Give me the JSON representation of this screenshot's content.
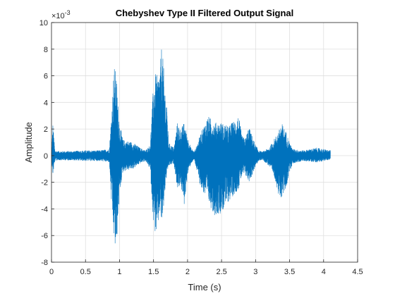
{
  "chart_data": {
    "type": "line",
    "title": "Chebyshev Type II Filtered Output Signal",
    "xlabel": "Time (s)",
    "ylabel": "Amplitude",
    "xlim": [
      0,
      4.5
    ],
    "ylim": [
      -8,
      10
    ],
    "y_exponent_label": "×10",
    "y_exponent_power": "-3",
    "x_ticks": [
      "0",
      "0.5",
      "1",
      "1.5",
      "2",
      "2.5",
      "3",
      "3.5",
      "4",
      "4.5"
    ],
    "y_ticks": [
      "-8",
      "-6",
      "-4",
      "-2",
      "0",
      "2",
      "4",
      "6",
      "8",
      "10"
    ],
    "grid": true,
    "line_color": "#0072BD",
    "series": [
      {
        "envelope_upper": [
          [
            0.0,
            0.3
          ],
          [
            0.02,
            2.5
          ],
          [
            0.05,
            0.4
          ],
          [
            0.1,
            0.35
          ],
          [
            0.3,
            0.35
          ],
          [
            0.5,
            0.4
          ],
          [
            0.7,
            0.4
          ],
          [
            0.85,
            0.5
          ],
          [
            0.88,
            3.0
          ],
          [
            0.92,
            6.8
          ],
          [
            0.95,
            6.2
          ],
          [
            0.97,
            4.5
          ],
          [
            1.0,
            2.5
          ],
          [
            1.05,
            1.2
          ],
          [
            1.2,
            1.0
          ],
          [
            1.3,
            0.6
          ],
          [
            1.38,
            0.4
          ],
          [
            1.45,
            0.8
          ],
          [
            1.5,
            5.5
          ],
          [
            1.53,
            6.2
          ],
          [
            1.56,
            6.0
          ],
          [
            1.6,
            6.8
          ],
          [
            1.62,
            8.5
          ],
          [
            1.64,
            7.2
          ],
          [
            1.68,
            4.5
          ],
          [
            1.7,
            3.5
          ],
          [
            1.72,
            1.0
          ],
          [
            1.8,
            0.6
          ],
          [
            1.85,
            2.5
          ],
          [
            1.9,
            2.0
          ],
          [
            1.95,
            2.5
          ],
          [
            2.0,
            1.5
          ],
          [
            2.05,
            0.6
          ],
          [
            2.1,
            0.3
          ],
          [
            2.15,
            1.0
          ],
          [
            2.2,
            1.8
          ],
          [
            2.3,
            3.0
          ],
          [
            2.4,
            2.5
          ],
          [
            2.5,
            2.5
          ],
          [
            2.6,
            2.2
          ],
          [
            2.75,
            3.0
          ],
          [
            2.8,
            1.5
          ],
          [
            2.85,
            1.3
          ],
          [
            2.9,
            2.2
          ],
          [
            2.95,
            1.5
          ],
          [
            3.0,
            0.8
          ],
          [
            3.05,
            0.4
          ],
          [
            3.1,
            0.3
          ],
          [
            3.2,
            0.6
          ],
          [
            3.3,
            1.5
          ],
          [
            3.35,
            2.0
          ],
          [
            3.38,
            2.5
          ],
          [
            3.45,
            1.8
          ],
          [
            3.5,
            1.0
          ],
          [
            3.55,
            0.5
          ],
          [
            3.7,
            0.4
          ],
          [
            3.9,
            0.6
          ],
          [
            4.0,
            0.5
          ],
          [
            4.1,
            0.4
          ]
        ],
        "envelope_lower": [
          [
            0.0,
            -0.3
          ],
          [
            0.02,
            -1.5
          ],
          [
            0.05,
            -0.4
          ],
          [
            0.1,
            -0.35
          ],
          [
            0.3,
            -0.35
          ],
          [
            0.5,
            -0.4
          ],
          [
            0.7,
            -0.4
          ],
          [
            0.85,
            -0.5
          ],
          [
            0.88,
            -3.5
          ],
          [
            0.92,
            -6.5
          ],
          [
            0.95,
            -7.6
          ],
          [
            0.97,
            -5.5
          ],
          [
            1.0,
            -3.0
          ],
          [
            1.05,
            -1.2
          ],
          [
            1.2,
            -1.0
          ],
          [
            1.3,
            -0.6
          ],
          [
            1.38,
            -0.4
          ],
          [
            1.45,
            -1.0
          ],
          [
            1.5,
            -5.2
          ],
          [
            1.53,
            -6.0
          ],
          [
            1.56,
            -5.8
          ],
          [
            1.6,
            -4.0
          ],
          [
            1.62,
            -5.5
          ],
          [
            1.64,
            -4.5
          ],
          [
            1.68,
            -2.0
          ],
          [
            1.7,
            -1.5
          ],
          [
            1.72,
            -0.8
          ],
          [
            1.8,
            -0.6
          ],
          [
            1.85,
            -2.5
          ],
          [
            1.9,
            -2.2
          ],
          [
            1.95,
            -3.8
          ],
          [
            2.0,
            -1.5
          ],
          [
            2.05,
            -0.6
          ],
          [
            2.1,
            -0.3
          ],
          [
            2.15,
            -1.5
          ],
          [
            2.2,
            -2.5
          ],
          [
            2.3,
            -3.5
          ],
          [
            2.4,
            -4.5
          ],
          [
            2.5,
            -4.3
          ],
          [
            2.6,
            -3.5
          ],
          [
            2.75,
            -2.5
          ],
          [
            2.8,
            -1.5
          ],
          [
            2.85,
            -1.5
          ],
          [
            2.9,
            -2.0
          ],
          [
            2.95,
            -1.5
          ],
          [
            3.0,
            -0.8
          ],
          [
            3.05,
            -0.4
          ],
          [
            3.1,
            -0.3
          ],
          [
            3.2,
            -0.8
          ],
          [
            3.3,
            -2.0
          ],
          [
            3.35,
            -3.5
          ],
          [
            3.38,
            -3.2
          ],
          [
            3.45,
            -2.5
          ],
          [
            3.5,
            -1.2
          ],
          [
            3.55,
            -0.6
          ],
          [
            3.7,
            -0.4
          ],
          [
            3.9,
            -0.5
          ],
          [
            4.0,
            -0.4
          ],
          [
            4.1,
            -0.3
          ]
        ]
      }
    ]
  }
}
